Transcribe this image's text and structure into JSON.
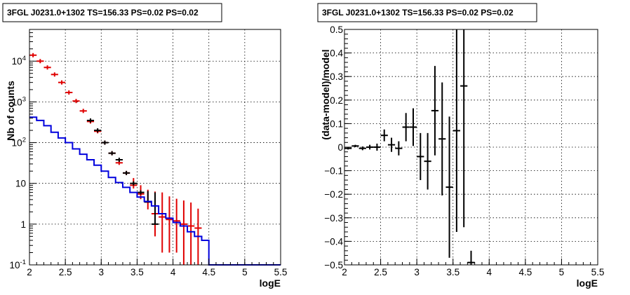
{
  "chart_data": [
    {
      "type": "line",
      "title": "3FGL J0231.0+1302 TS=156.33 PS=0.02 PS=0.02",
      "xlabel": "logE",
      "ylabel": "Nb of counts",
      "xlim": [
        2,
        5.5
      ],
      "ylim": [
        0.1,
        60000
      ],
      "ylog": true,
      "grid": true,
      "xticks": [
        "2",
        "2.5",
        "3",
        "3.5",
        "4",
        "4.5",
        "5",
        "5.5"
      ],
      "yticks": [
        {
          "value": 0.1,
          "base": "10",
          "exp": "-1"
        },
        {
          "value": 1,
          "base": "1",
          "exp": ""
        },
        {
          "value": 10,
          "base": "10",
          "exp": ""
        },
        {
          "value": 100,
          "base": "10",
          "exp": "2"
        },
        {
          "value": 1000,
          "base": "10",
          "exp": "3"
        },
        {
          "value": 10000,
          "base": "10",
          "exp": "4"
        }
      ],
      "series": [
        {
          "color": "#e00000",
          "style": "points",
          "x": [
            2.05,
            2.15,
            2.25,
            2.35,
            2.45,
            2.55,
            2.65,
            2.75,
            2.85,
            2.95,
            3.05,
            3.15,
            3.25,
            3.35,
            3.45,
            3.55,
            3.65,
            3.75,
            3.85,
            3.95,
            4.05,
            4.15,
            4.25,
            4.35
          ],
          "y": [
            14000,
            10000,
            7000,
            4700,
            3000,
            1700,
            1050,
            600,
            330,
            190,
            100,
            55,
            32,
            18,
            9,
            5.5,
            3.5,
            1.8,
            1.5,
            1.3,
            1.2,
            1.0,
            0.9,
            0.8
          ],
          "yerr": [
            [
              0,
              0,
              0,
              0,
              0,
              0,
              0,
              0,
              0,
              0,
              0,
              0,
              0,
              0,
              1.5,
              1.4,
              1.2,
              1.3,
              1.3,
              1.1,
              1.0,
              0.9,
              0.8,
              0.7
            ],
            [
              0,
              0,
              0,
              0,
              0,
              0,
              0,
              0,
              0,
              0,
              0,
              0,
              0,
              0,
              4.5,
              3.5,
              3.5,
              4.5,
              4.5,
              3.5,
              3.0,
              2.8,
              2.5,
              1.6
            ]
          ]
        },
        {
          "color": "#000000",
          "style": "points",
          "x": [
            2.85,
            2.95,
            3.05,
            3.15,
            3.25,
            3.35,
            3.45,
            3.55,
            3.65,
            3.75
          ],
          "y": [
            350,
            200,
            100,
            55,
            38,
            18,
            10,
            6,
            3.5,
            1.0
          ],
          "yerr": [
            [
              0,
              0,
              0,
              0,
              0,
              0,
              0,
              0,
              0,
              0
            ],
            [
              0,
              0,
              0,
              0,
              0,
              0,
              0,
              0,
              3,
              5
            ]
          ]
        },
        {
          "color": "#0000dd",
          "style": "step",
          "x": [
            2.0,
            2.1,
            2.2,
            2.3,
            2.4,
            2.5,
            2.6,
            2.7,
            2.8,
            2.9,
            3.0,
            3.1,
            3.2,
            3.3,
            3.4,
            3.5,
            3.6,
            3.7,
            3.8,
            3.9,
            4.0,
            4.1,
            4.2,
            4.3,
            4.4,
            4.5,
            5.5
          ],
          "y": [
            420,
            350,
            260,
            180,
            130,
            100,
            70,
            52,
            38,
            28,
            20,
            14,
            10.5,
            8,
            6,
            4.6,
            3.6,
            2.8,
            1.8,
            1.4,
            1.1,
            0.9,
            0.65,
            0.5,
            0.4,
            0.1,
            0.1
          ]
        }
      ]
    },
    {
      "type": "scatter",
      "title": "3FGL J0231.0+1302 TS=156.33 PS=0.02 PS=0.02",
      "xlabel": "logE",
      "ylabel": "(data-model)/model",
      "xlim": [
        2,
        5.5
      ],
      "ylim": [
        -0.5,
        0.5
      ],
      "grid": true,
      "xticks": [
        "2",
        "2.5",
        "3",
        "3.5",
        "4",
        "4.5",
        "5",
        "5.5"
      ],
      "yticks": [
        "−0.5",
        "−0.4",
        "−0.3",
        "−0.2",
        "−0.1",
        "0",
        "0.1",
        "0.2",
        "0.3",
        "0.4",
        "0.5"
      ],
      "series": [
        {
          "color": "#000000",
          "x": [
            2.05,
            2.15,
            2.25,
            2.35,
            2.45,
            2.55,
            2.65,
            2.75,
            2.85,
            2.95,
            3.05,
            3.15,
            3.25,
            3.35,
            3.45,
            3.55,
            3.65,
            3.75
          ],
          "y": [
            -0.005,
            0.005,
            -0.005,
            0.0,
            0.0,
            0.05,
            0.01,
            -0.005,
            0.085,
            0.085,
            -0.04,
            -0.06,
            0.155,
            0.035,
            -0.17,
            0.07,
            0.26,
            -0.49
          ],
          "yerr": [
            0.005,
            0.005,
            0.008,
            0.01,
            0.015,
            0.025,
            0.03,
            0.03,
            0.06,
            0.08,
            0.1,
            0.12,
            0.19,
            0.24,
            0.3,
            0.43,
            0.6,
            0.05
          ]
        }
      ]
    }
  ]
}
